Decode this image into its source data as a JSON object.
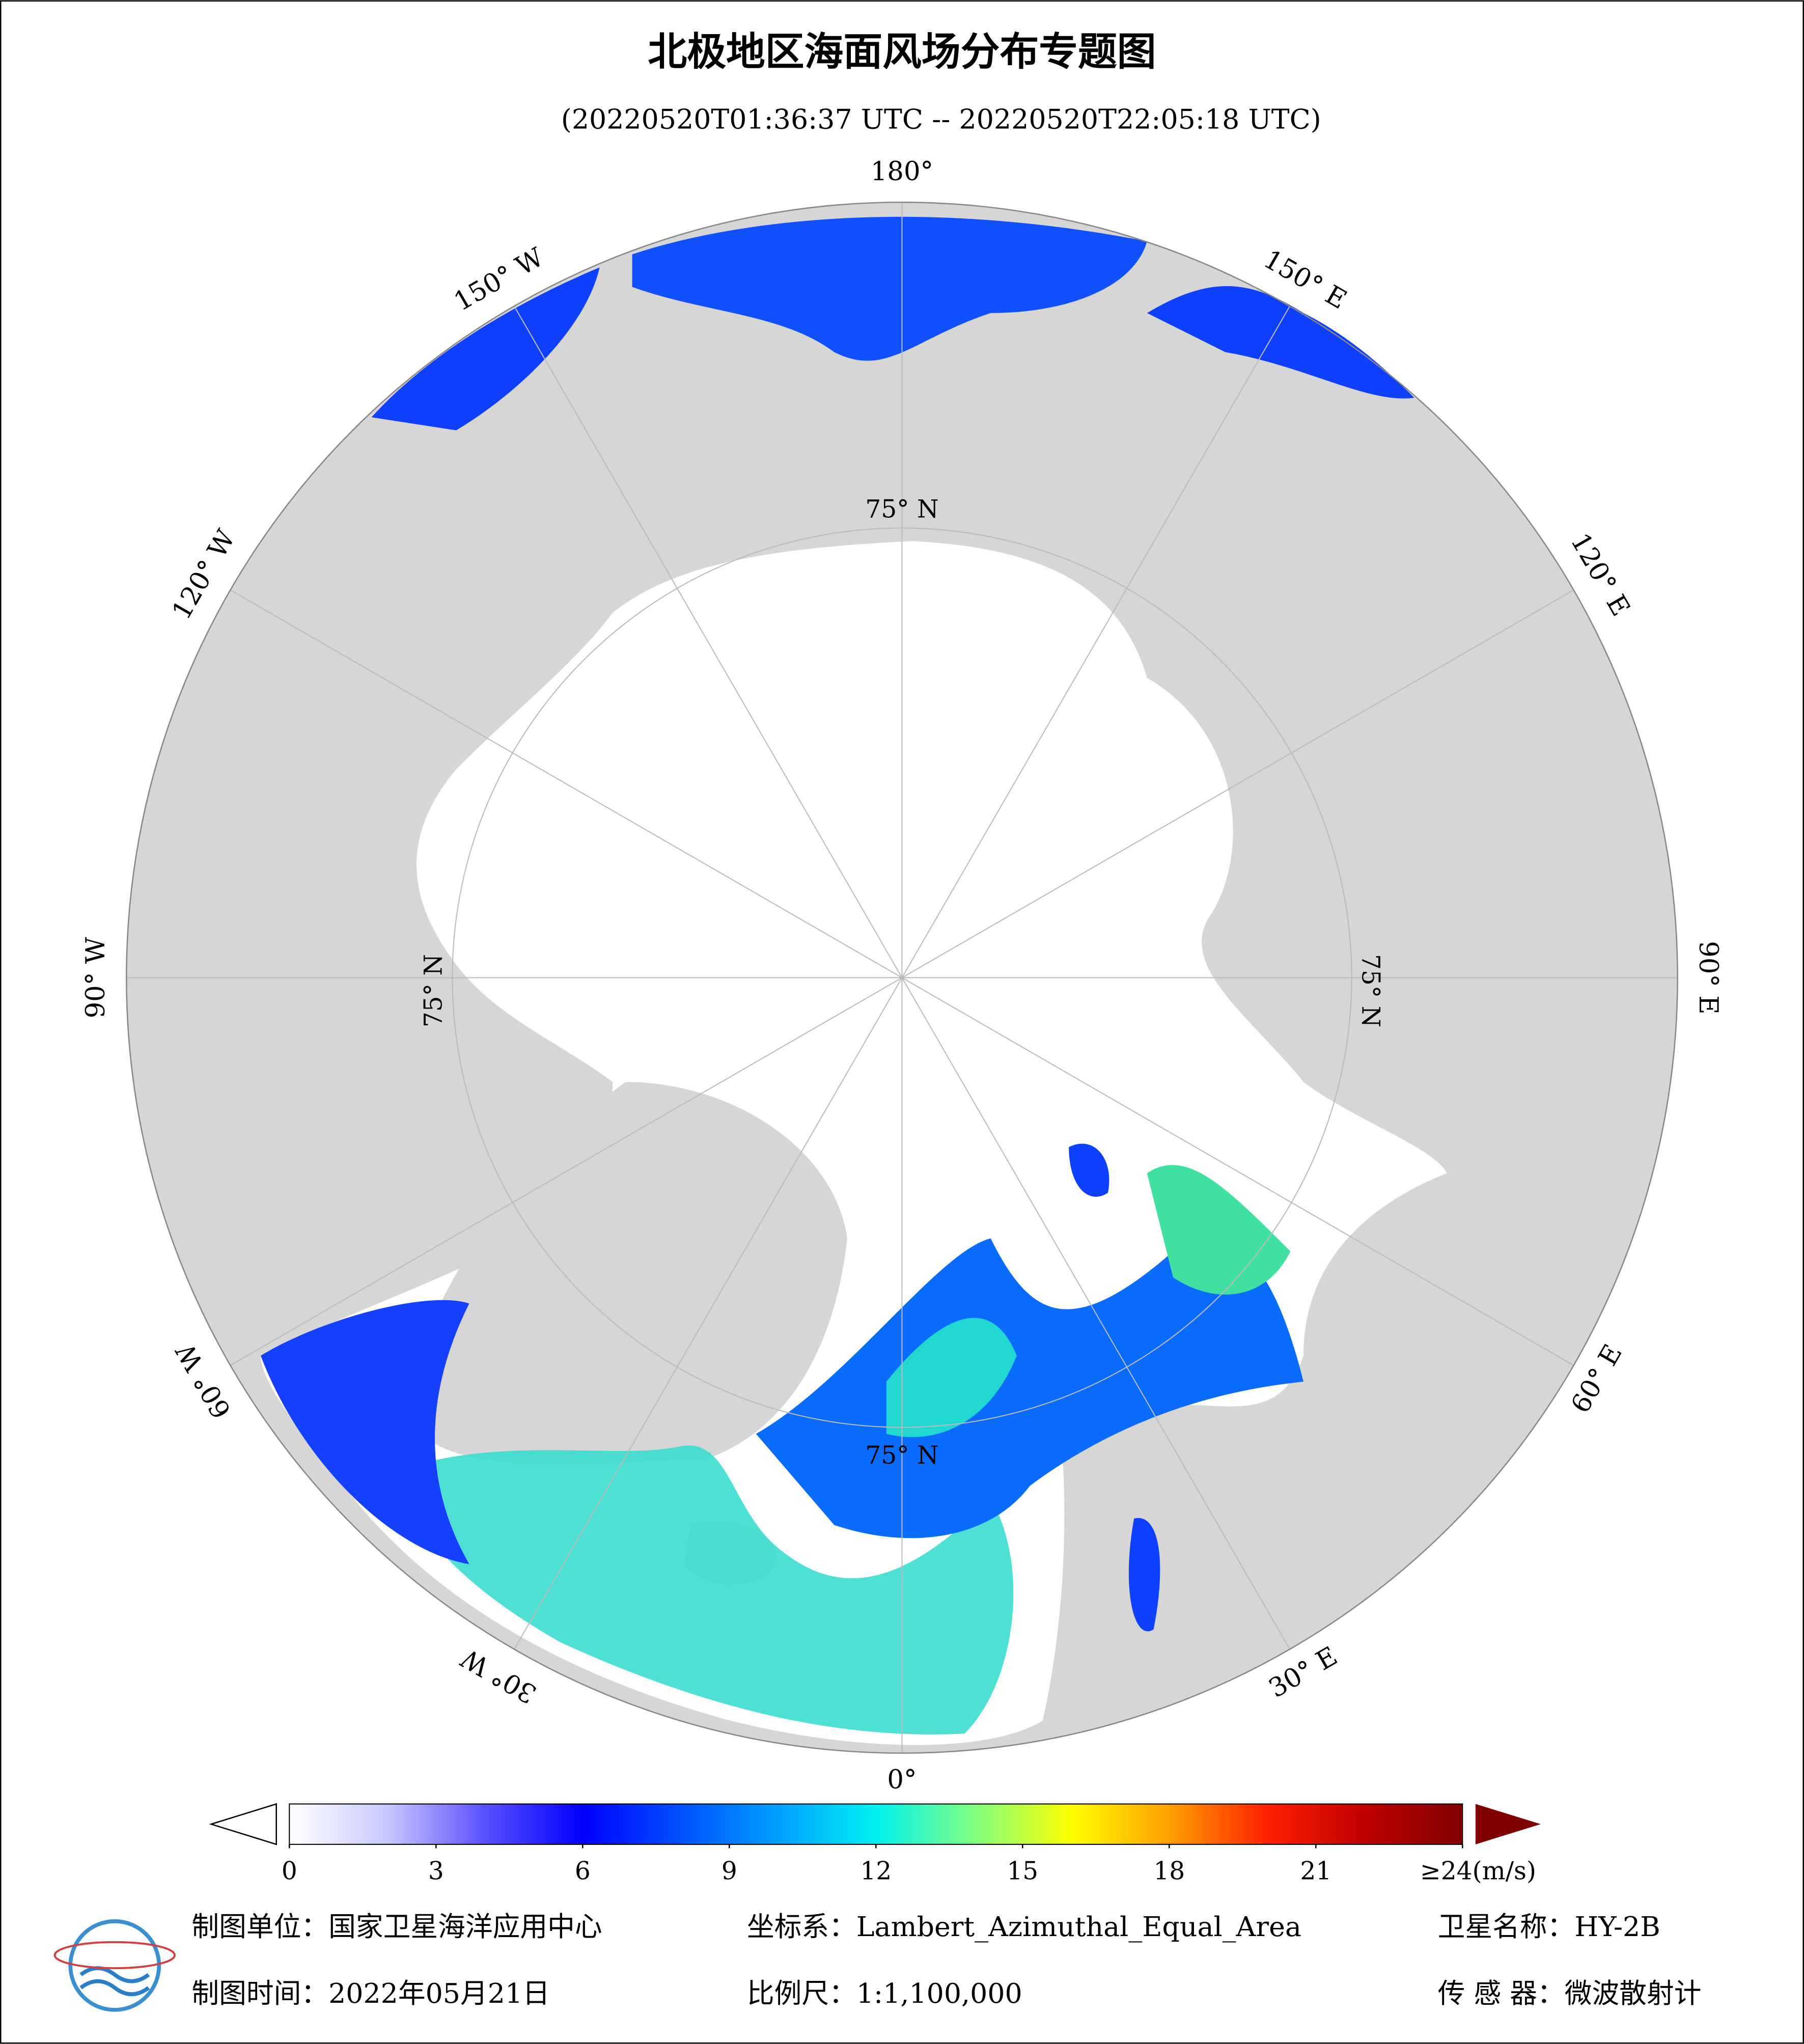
{
  "header": {
    "title": "北极地区海面风场分布专题图",
    "subtitle": "(20220520T01:36:37 UTC -- 20220520T22:05:18 UTC)"
  },
  "map": {
    "longitude_labels": [
      "180°",
      "150° E",
      "120° E",
      "90° E",
      "60° E",
      "30° E",
      "0°",
      "30° W",
      "60° W",
      "90° W",
      "120° W",
      "150° W"
    ],
    "latitude_label": "75° N"
  },
  "colorbar": {
    "lim": [
      0,
      24
    ],
    "ticks": [
      0,
      3,
      6,
      9,
      12,
      15,
      18,
      21,
      {
        "value": 24,
        "label": "≥24(m/s)"
      }
    ],
    "colors": [
      "#ffffff",
      "#c8c8ff",
      "#5a50ff",
      "#0000ff",
      "#0050ff",
      "#00a0ff",
      "#00f0f0",
      "#80ff80",
      "#ffff00",
      "#ffa000",
      "#ff2000",
      "#c00000",
      "#800000"
    ]
  },
  "footer": {
    "unit": "制图单位：国家卫星海洋应用中心",
    "projection": "坐标系：Lambert_Azimuthal_Equal_Area",
    "satellite": "卫星名称：HY-2B",
    "date": "制图时间：2022年05月21日",
    "scale": "比例尺：1:1,100,000",
    "sensor": "传 感 器：微波散射计"
  }
}
